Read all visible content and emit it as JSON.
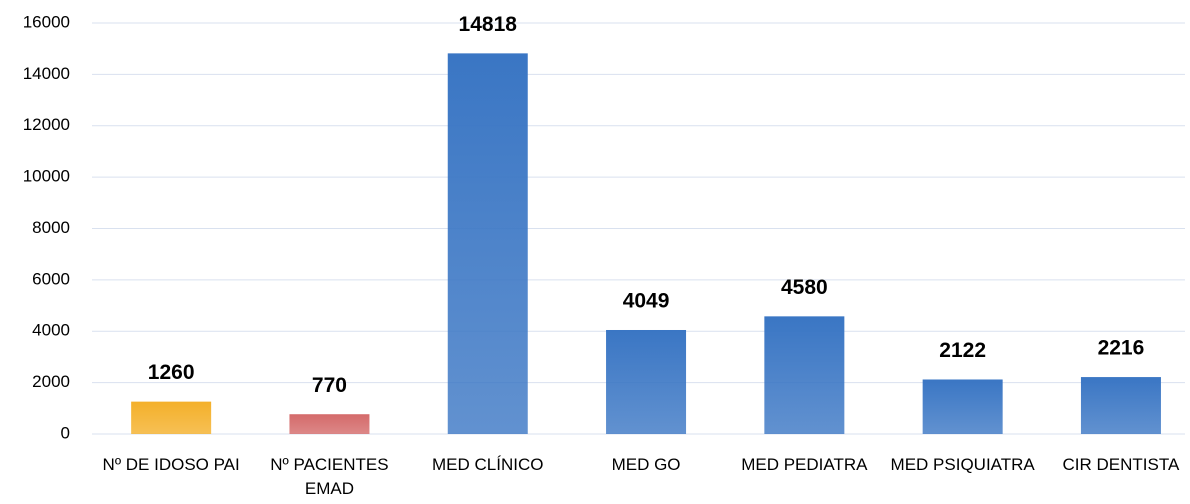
{
  "chart_data": {
    "type": "bar",
    "categories": [
      "Nº DE IDOSO PAI",
      "Nº PACIENTES EMAD",
      "MED CLÍNICO",
      "MED GO",
      "MED PEDIATRA",
      "MED PSIQUIATRA",
      "CIR DENTISTA"
    ],
    "values": [
      1260,
      770,
      14818,
      4049,
      4580,
      2122,
      2216
    ],
    "colors": [
      "#f4b02a",
      "#d46a6a",
      "#3a76c4",
      "#3a76c4",
      "#3a76c4",
      "#3a76c4",
      "#3a76c4"
    ],
    "ylim": [
      0,
      16000
    ],
    "yticks": [
      0,
      2000,
      4000,
      6000,
      8000,
      10000,
      12000,
      14000,
      16000
    ],
    "grid": true
  }
}
